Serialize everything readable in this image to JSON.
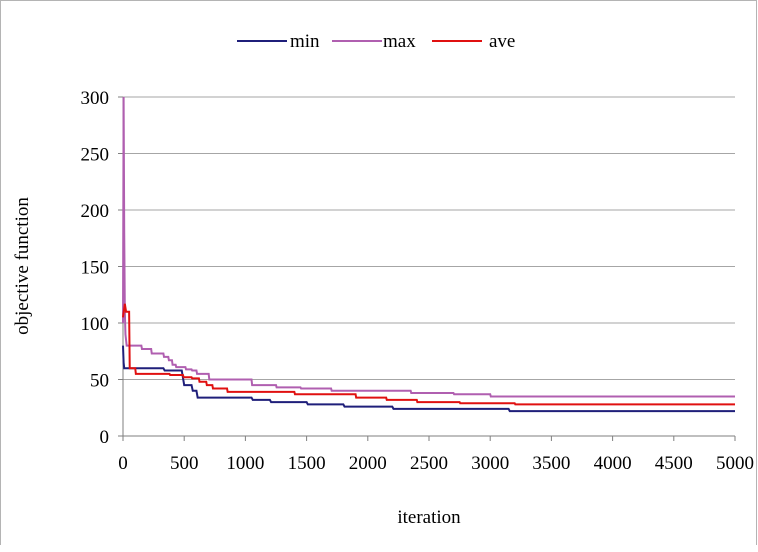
{
  "chart_data": {
    "type": "line",
    "xlabel": "iteration",
    "ylabel": "objective function",
    "xlim": [
      0,
      5000
    ],
    "ylim": [
      0,
      300
    ],
    "xticks": [
      0,
      500,
      1000,
      1500,
      2000,
      2500,
      3000,
      3500,
      4000,
      4500,
      5000
    ],
    "yticks": [
      0,
      50,
      100,
      150,
      200,
      250,
      300
    ],
    "grid": "horizontal",
    "legend": "top",
    "series": [
      {
        "name": "min",
        "color": "#1f1f7a",
        "points": [
          [
            0,
            80
          ],
          [
            5,
            65
          ],
          [
            10,
            60
          ],
          [
            330,
            60
          ],
          [
            340,
            58
          ],
          [
            480,
            58
          ],
          [
            500,
            45
          ],
          [
            560,
            45
          ],
          [
            570,
            40
          ],
          [
            600,
            40
          ],
          [
            610,
            34
          ],
          [
            1050,
            34
          ],
          [
            1060,
            32
          ],
          [
            1200,
            32
          ],
          [
            1210,
            30
          ],
          [
            1500,
            30
          ],
          [
            1510,
            28
          ],
          [
            1800,
            28
          ],
          [
            1810,
            26
          ],
          [
            2200,
            26
          ],
          [
            2210,
            24
          ],
          [
            3150,
            24
          ],
          [
            3160,
            22
          ],
          [
            5000,
            22
          ]
        ]
      },
      {
        "name": "max",
        "color": "#b05fb0",
        "points": [
          [
            0,
            100
          ],
          [
            5,
            300
          ],
          [
            10,
            180
          ],
          [
            15,
            110
          ],
          [
            20,
            90
          ],
          [
            30,
            80
          ],
          [
            150,
            80
          ],
          [
            155,
            77
          ],
          [
            230,
            77
          ],
          [
            235,
            73
          ],
          [
            330,
            73
          ],
          [
            335,
            70
          ],
          [
            370,
            70
          ],
          [
            375,
            67
          ],
          [
            400,
            67
          ],
          [
            405,
            63
          ],
          [
            430,
            63
          ],
          [
            435,
            61
          ],
          [
            510,
            61
          ],
          [
            515,
            59
          ],
          [
            560,
            59
          ],
          [
            565,
            58
          ],
          [
            600,
            58
          ],
          [
            605,
            55
          ],
          [
            700,
            55
          ],
          [
            705,
            50
          ],
          [
            1050,
            50
          ],
          [
            1055,
            45
          ],
          [
            1250,
            45
          ],
          [
            1255,
            43
          ],
          [
            1450,
            43
          ],
          [
            1455,
            42
          ],
          [
            1700,
            42
          ],
          [
            1705,
            40
          ],
          [
            2350,
            40
          ],
          [
            2355,
            38
          ],
          [
            2700,
            38
          ],
          [
            2705,
            37
          ],
          [
            3000,
            37
          ],
          [
            3005,
            35
          ],
          [
            5000,
            35
          ]
        ]
      },
      {
        "name": "ave",
        "color": "#e01010",
        "points": [
          [
            0,
            105
          ],
          [
            15,
            117
          ],
          [
            25,
            110
          ],
          [
            50,
            110
          ],
          [
            55,
            60
          ],
          [
            100,
            60
          ],
          [
            105,
            55
          ],
          [
            380,
            55
          ],
          [
            385,
            54
          ],
          [
            490,
            54
          ],
          [
            495,
            52
          ],
          [
            560,
            52
          ],
          [
            565,
            51
          ],
          [
            620,
            51
          ],
          [
            625,
            48
          ],
          [
            680,
            48
          ],
          [
            685,
            45
          ],
          [
            730,
            45
          ],
          [
            735,
            42
          ],
          [
            850,
            42
          ],
          [
            855,
            39
          ],
          [
            1400,
            39
          ],
          [
            1405,
            37
          ],
          [
            1900,
            37
          ],
          [
            1905,
            34
          ],
          [
            2150,
            34
          ],
          [
            2155,
            32
          ],
          [
            2400,
            32
          ],
          [
            2405,
            30
          ],
          [
            2750,
            30
          ],
          [
            2755,
            29
          ],
          [
            3200,
            29
          ],
          [
            3205,
            28
          ],
          [
            5000,
            28
          ]
        ]
      }
    ]
  }
}
